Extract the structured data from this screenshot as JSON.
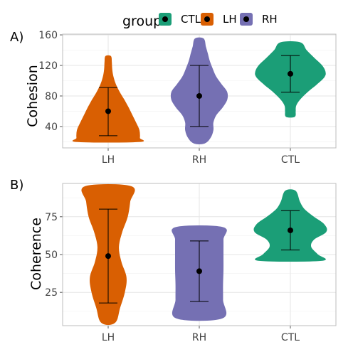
{
  "legend": {
    "title": "group",
    "items": [
      {
        "label": "CTL",
        "color": "#1b9e77"
      },
      {
        "label": "LH",
        "color": "#d95f02"
      },
      {
        "label": "RH",
        "color": "#7570b3"
      }
    ]
  },
  "chart_data": [
    {
      "type": "violin",
      "panel_tag": "A)",
      "ylabel": "Cohesion",
      "xlabel": "",
      "categories": [
        "LH",
        "RH",
        "CTL"
      ],
      "ylim": [
        12,
        161
      ],
      "yticks": [
        40,
        80,
        120,
        160
      ],
      "grid": true,
      "series": [
        {
          "group": "LH",
          "color": "#d95f02",
          "mean": 60,
          "lower": 28,
          "upper": 91,
          "profile": [
            [
              20,
              0.72
            ],
            [
              25,
              0.75
            ],
            [
              35,
              0.74
            ],
            [
              45,
              0.66
            ],
            [
              55,
              0.57
            ],
            [
              65,
              0.48
            ],
            [
              75,
              0.38
            ],
            [
              85,
              0.27
            ],
            [
              95,
              0.18
            ],
            [
              105,
              0.12
            ],
            [
              115,
              0.09
            ],
            [
              125,
              0.08
            ],
            [
              132,
              0.06
            ]
          ]
        },
        {
          "group": "RH",
          "color": "#7570b3",
          "mean": 80,
          "lower": 40,
          "upper": 120,
          "profile": [
            [
              18,
              0.12
            ],
            [
              25,
              0.26
            ],
            [
              35,
              0.33
            ],
            [
              45,
              0.33
            ],
            [
              55,
              0.4
            ],
            [
              65,
              0.55
            ],
            [
              75,
              0.66
            ],
            [
              85,
              0.66
            ],
            [
              95,
              0.53
            ],
            [
              105,
              0.4
            ],
            [
              115,
              0.32
            ],
            [
              125,
              0.25
            ],
            [
              135,
              0.2
            ],
            [
              145,
              0.15
            ],
            [
              155,
              0.1
            ]
          ]
        },
        {
          "group": "CTL",
          "color": "#1b9e77",
          "mean": 109,
          "lower": 85,
          "upper": 133,
          "profile": [
            [
              53,
              0.1
            ],
            [
              60,
              0.12
            ],
            [
              67,
              0.13
            ],
            [
              75,
              0.22
            ],
            [
              85,
              0.4
            ],
            [
              95,
              0.62
            ],
            [
              105,
              0.81
            ],
            [
              112,
              0.83
            ],
            [
              120,
              0.75
            ],
            [
              130,
              0.56
            ],
            [
              140,
              0.38
            ],
            [
              150,
              0.23
            ]
          ]
        }
      ]
    },
    {
      "type": "violin",
      "panel_tag": "B)",
      "ylabel": "Coherence",
      "xlabel": "",
      "categories": [
        "LH",
        "RH",
        "CTL"
      ],
      "ylim": [
        3,
        97
      ],
      "yticks": [
        25,
        50,
        75
      ],
      "grid": true,
      "series": [
        {
          "group": "LH",
          "color": "#d95f02",
          "mean": 49,
          "lower": 18,
          "upper": 80,
          "profile": [
            [
              5,
              0.16
            ],
            [
              15,
              0.28
            ],
            [
              25,
              0.39
            ],
            [
              35,
              0.43
            ],
            [
              45,
              0.31
            ],
            [
              55,
              0.25
            ],
            [
              65,
              0.33
            ],
            [
              75,
              0.46
            ],
            [
              85,
              0.52
            ],
            [
              95,
              0.55
            ]
          ]
        },
        {
          "group": "RH",
          "color": "#7570b3",
          "mean": 39,
          "lower": 19,
          "upper": 59,
          "profile": [
            [
              8,
              0.55
            ],
            [
              20,
              0.56
            ],
            [
              30,
              0.56
            ],
            [
              40,
              0.57
            ],
            [
              50,
              0.57
            ],
            [
              60,
              0.57
            ],
            [
              68,
              0.56
            ]
          ]
        },
        {
          "group": "CTL",
          "color": "#1b9e77",
          "mean": 66,
          "lower": 53,
          "upper": 79,
          "profile": [
            [
              46,
              0.74
            ],
            [
              50,
              0.65
            ],
            [
              55,
              0.49
            ],
            [
              60,
              0.56
            ],
            [
              65,
              0.85
            ],
            [
              70,
              0.8
            ],
            [
              75,
              0.55
            ],
            [
              80,
              0.33
            ],
            [
              85,
              0.22
            ],
            [
              92,
              0.12
            ]
          ]
        }
      ]
    }
  ]
}
